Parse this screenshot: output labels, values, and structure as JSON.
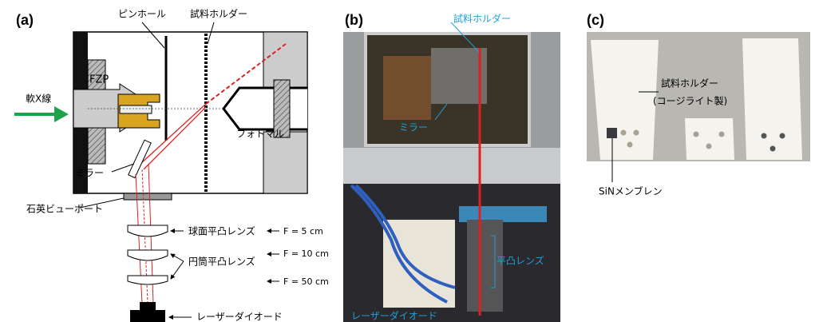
{
  "panels": [
    {
      "label": "(a)",
      "texts": {
        "pinhole": "ピンホール",
        "sample_holder": "試料ホルダー",
        "fzp": "FZP",
        "soft_xray": "軟X線",
        "photomultiplier": "フォトマル",
        "mirror": "ミラー",
        "viewport": "石英ビューポート",
        "spherical_lens": "球面平凸レンズ",
        "cylindrical_lens": "円筒平凸レンズ",
        "f1": "F = 5 cm",
        "f2": "F = 10 cm",
        "f3": "F = 50 cm",
        "laser_diode": "レーザーダイオード"
      }
    },
    {
      "label": "(b)",
      "texts": {
        "sample_holder": "試料ホルダー",
        "mirror": "ミラー",
        "lens": "平凸レンズ",
        "laser_diode": "レーザーダイオード"
      }
    },
    {
      "label": "(c)",
      "texts": {
        "sample_holder": "試料ホルダー",
        "material": "(コージライト製)",
        "membrane": "SiNメンブレン"
      }
    }
  ]
}
